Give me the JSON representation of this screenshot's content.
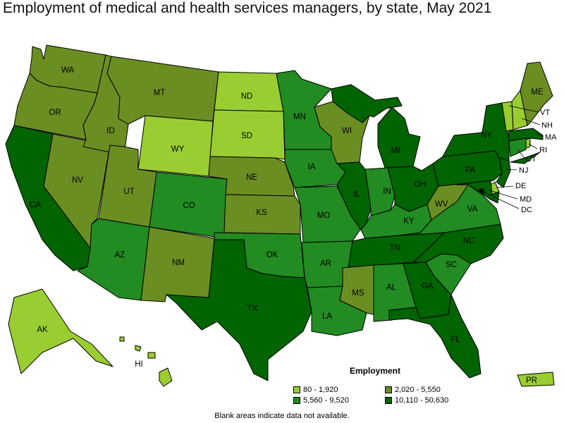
{
  "title": "Employment of medical and health services managers, by state, May 2021",
  "legend": {
    "title": "Employment",
    "bins": [
      {
        "label": "80 - 1,920",
        "color": "#9acd32"
      },
      {
        "label": "2,020 - 5,550",
        "color": "#6b8e23"
      },
      {
        "label": "5,560 - 9,520",
        "color": "#228b22"
      },
      {
        "label": "10,110 - 50,630",
        "color": "#006400"
      }
    ]
  },
  "note": "Blank areas indicate data not available.",
  "states": {
    "WA": 1,
    "OR": 1,
    "CA": 3,
    "NV": 1,
    "ID": 1,
    "MT": 1,
    "WY": 0,
    "UT": 1,
    "AZ": 2,
    "CO": 2,
    "NM": 1,
    "ND": 0,
    "SD": 0,
    "NE": 1,
    "KS": 1,
    "OK": 2,
    "TX": 3,
    "MN": 2,
    "IA": 2,
    "MO": 2,
    "AR": 2,
    "LA": 2,
    "WI": 1,
    "IL": 3,
    "MI": 3,
    "IN": 2,
    "OH": 3,
    "KY": 2,
    "TN": 3,
    "MS": 1,
    "AL": 2,
    "GA": 3,
    "FL": 3,
    "SC": 2,
    "NC": 3,
    "VA": 2,
    "WV": 1,
    "PA": 3,
    "NY": 3,
    "VT": 0,
    "NH": 0,
    "ME": 1,
    "MA": 3,
    "RI": 0,
    "CT": 2,
    "NJ": 3,
    "DE": 0,
    "MD": 3,
    "DC": 3,
    "AK": 0,
    "HI": 0,
    "PR": 0
  },
  "labels": {
    "WA": "WA",
    "OR": "OR",
    "CA": "CA",
    "NV": "NV",
    "ID": "ID",
    "MT": "MT",
    "WY": "WY",
    "UT": "UT",
    "AZ": "AZ",
    "CO": "CO",
    "NM": "NM",
    "ND": "ND",
    "SD": "SD",
    "NE": "NE",
    "KS": "KS",
    "OK": "OK",
    "TX": "TX",
    "MN": "MN",
    "IA": "IA",
    "MO": "MO",
    "AR": "AR",
    "LA": "LA",
    "WI": "WI",
    "IL": "IL",
    "MI": "MI",
    "IN": "IN",
    "OH": "OH",
    "KY": "KY",
    "TN": "TN",
    "MS": "MS",
    "AL": "AL",
    "GA": "GA",
    "FL": "FL",
    "SC": "SC",
    "NC": "NC",
    "VA": "VA",
    "WV": "WV",
    "PA": "PA",
    "NY": "NY",
    "VT": "VT",
    "NH": "NH",
    "ME": "ME",
    "MA": "MA",
    "RI": "RI",
    "CT": "CT",
    "NJ": "NJ",
    "DE": "DE",
    "MD": "MD",
    "DC": "DC",
    "AK": "AK",
    "HI": "HI",
    "PR": "PR"
  }
}
